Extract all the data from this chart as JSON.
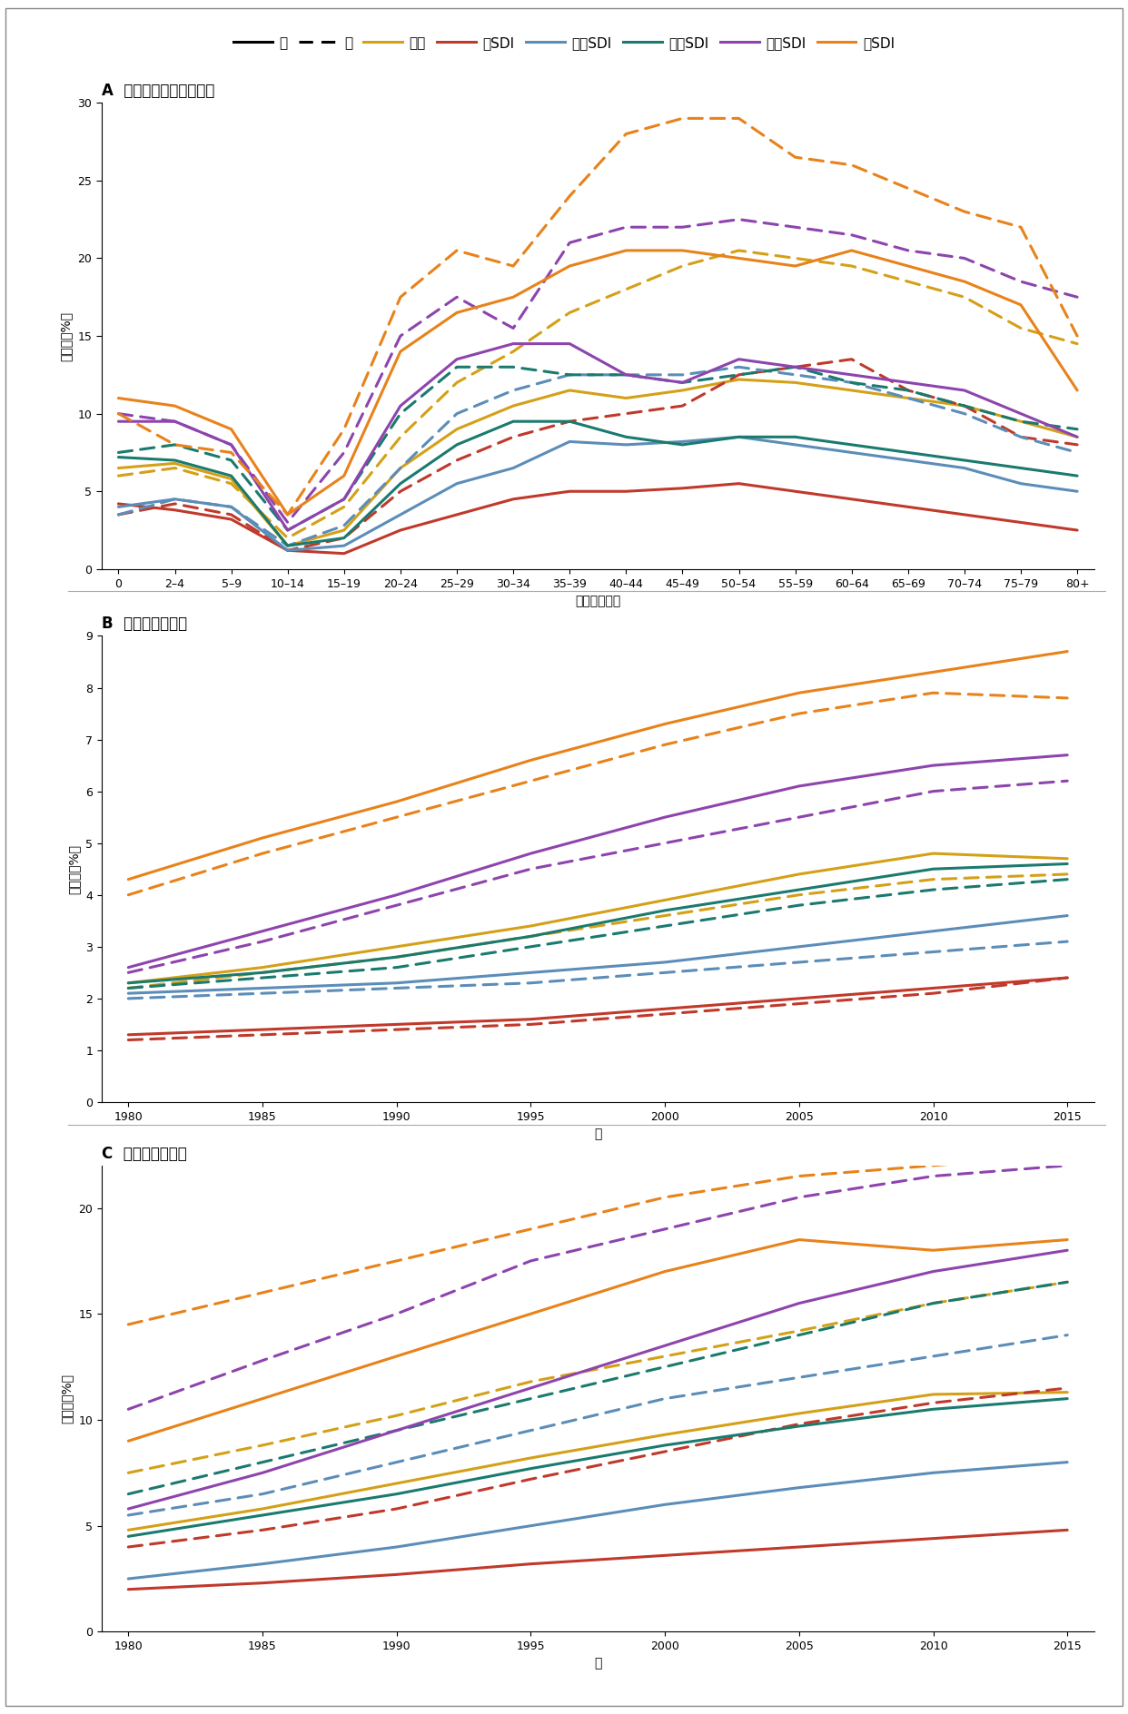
{
  "panel_A_title": "A  不同年龄组的肥胖情况",
  "panel_B_title": "B  儿童的肥胖情况",
  "panel_C_title": "C  成人的肥胖情况",
  "A_xlabel": "年龄组（岁）",
  "B_xlabel": "年",
  "C_xlabel": "年",
  "A_ylabel": "患病率（%）",
  "B_ylabel": "患病率（%）",
  "C_ylabel": "患病率（%）",
  "A_xtick_labels": [
    "0",
    "2–4",
    "5–9",
    "10–14",
    "15–19",
    "20–24",
    "25–29",
    "30–34",
    "35–39",
    "40–44",
    "45–49",
    "50–54",
    "55–59",
    "60–64",
    "65–69",
    "70–74",
    "75–79",
    "80+"
  ],
  "A_ylim": [
    0,
    30
  ],
  "A_yticks": [
    0,
    5,
    10,
    15,
    20,
    25,
    30
  ],
  "B_xticks": [
    1980,
    1985,
    1990,
    1995,
    2000,
    2005,
    2010,
    2015
  ],
  "B_ylim": [
    0,
    9
  ],
  "B_yticks": [
    0,
    1,
    2,
    3,
    4,
    5,
    6,
    7,
    8,
    9
  ],
  "C_xticks": [
    1980,
    1985,
    1990,
    1995,
    2000,
    2005,
    2010,
    2015
  ],
  "C_ylim": [
    0,
    22
  ],
  "C_yticks": [
    0,
    5,
    10,
    15,
    20
  ],
  "colors": {
    "global": "#D4A017",
    "low_sdi": "#C0392B",
    "low_mid_sdi": "#5B8DB8",
    "mid_sdi": "#1A7A6E",
    "mid_high_sdi": "#8E44AD",
    "high_sdi": "#E8821A"
  },
  "A_data": {
    "n": 18,
    "global_male": [
      6.5,
      6.8,
      5.8,
      1.5,
      2.5,
      6.5,
      9.0,
      10.5,
      11.5,
      11.0,
      11.5,
      12.2,
      12.0,
      11.5,
      11.0,
      10.5,
      9.5,
      8.5
    ],
    "global_female": [
      6.0,
      6.5,
      5.5,
      2.0,
      4.0,
      8.5,
      12.0,
      14.0,
      16.5,
      18.0,
      19.5,
      20.5,
      20.0,
      19.5,
      18.5,
      17.5,
      15.5,
      14.5
    ],
    "low_sdi_male": [
      4.2,
      3.8,
      3.2,
      1.2,
      1.0,
      2.5,
      3.5,
      4.5,
      5.0,
      5.0,
      5.2,
      5.5,
      5.0,
      4.5,
      4.0,
      3.5,
      3.0,
      2.5
    ],
    "low_sdi_female": [
      3.5,
      4.2,
      3.5,
      1.2,
      2.0,
      5.0,
      7.0,
      8.5,
      9.5,
      10.0,
      10.5,
      12.5,
      13.0,
      13.5,
      11.5,
      10.5,
      8.5,
      8.0
    ],
    "low_mid_sdi_male": [
      4.0,
      4.5,
      4.0,
      1.2,
      1.5,
      3.5,
      5.5,
      6.5,
      8.2,
      8.0,
      8.2,
      8.5,
      8.0,
      7.5,
      7.0,
      6.5,
      5.5,
      5.0
    ],
    "low_mid_sdi_female": [
      3.5,
      4.5,
      4.0,
      1.5,
      2.8,
      6.5,
      10.0,
      11.5,
      12.5,
      12.5,
      12.5,
      13.0,
      12.5,
      12.0,
      11.0,
      10.0,
      8.5,
      7.5
    ],
    "mid_sdi_male": [
      7.2,
      7.0,
      6.0,
      1.5,
      2.0,
      5.5,
      8.0,
      9.5,
      9.5,
      8.5,
      8.0,
      8.5,
      8.5,
      8.0,
      7.5,
      7.0,
      6.5,
      6.0
    ],
    "mid_sdi_female": [
      7.5,
      8.0,
      7.0,
      2.5,
      4.5,
      10.0,
      13.0,
      13.0,
      12.5,
      12.5,
      12.0,
      12.5,
      13.0,
      12.0,
      11.5,
      10.5,
      9.5,
      9.0
    ],
    "mid_high_sdi_male": [
      9.5,
      9.5,
      8.0,
      2.5,
      4.5,
      10.5,
      13.5,
      14.5,
      14.5,
      12.5,
      12.0,
      13.5,
      13.0,
      12.5,
      12.0,
      11.5,
      10.0,
      8.5
    ],
    "mid_high_sdi_female": [
      10.0,
      9.5,
      8.0,
      3.0,
      7.5,
      15.0,
      17.5,
      15.5,
      21.0,
      22.0,
      22.0,
      22.5,
      22.0,
      21.5,
      20.5,
      20.0,
      18.5,
      17.5
    ],
    "high_sdi_male": [
      11.0,
      10.5,
      9.0,
      3.5,
      6.0,
      14.0,
      16.5,
      17.5,
      19.5,
      20.5,
      20.5,
      20.0,
      19.5,
      20.5,
      19.5,
      18.5,
      17.0,
      11.5
    ],
    "high_sdi_female": [
      10.0,
      8.0,
      7.5,
      3.5,
      9.0,
      17.5,
      20.5,
      19.5,
      24.0,
      28.0,
      29.0,
      29.0,
      26.5,
      26.0,
      24.5,
      23.0,
      22.0,
      15.0
    ]
  },
  "B_data": {
    "years": [
      1980,
      1985,
      1990,
      1995,
      2000,
      2005,
      2010,
      2015
    ],
    "global_male": [
      2.3,
      2.6,
      3.0,
      3.4,
      3.9,
      4.4,
      4.8,
      4.7
    ],
    "global_female": [
      2.2,
      2.5,
      2.8,
      3.2,
      3.6,
      4.0,
      4.3,
      4.4
    ],
    "low_sdi_male": [
      1.3,
      1.4,
      1.5,
      1.6,
      1.8,
      2.0,
      2.2,
      2.4
    ],
    "low_sdi_female": [
      1.2,
      1.3,
      1.4,
      1.5,
      1.7,
      1.9,
      2.1,
      2.4
    ],
    "low_mid_sdi_male": [
      2.1,
      2.2,
      2.3,
      2.5,
      2.7,
      3.0,
      3.3,
      3.6
    ],
    "low_mid_sdi_female": [
      2.0,
      2.1,
      2.2,
      2.3,
      2.5,
      2.7,
      2.9,
      3.1
    ],
    "mid_sdi_male": [
      2.3,
      2.5,
      2.8,
      3.2,
      3.7,
      4.1,
      4.5,
      4.6
    ],
    "mid_sdi_female": [
      2.2,
      2.4,
      2.6,
      3.0,
      3.4,
      3.8,
      4.1,
      4.3
    ],
    "mid_high_sdi_male": [
      2.6,
      3.3,
      4.0,
      4.8,
      5.5,
      6.1,
      6.5,
      6.7
    ],
    "mid_high_sdi_female": [
      2.5,
      3.1,
      3.8,
      4.5,
      5.0,
      5.5,
      6.0,
      6.2
    ],
    "high_sdi_male": [
      4.3,
      5.1,
      5.8,
      6.6,
      7.3,
      7.9,
      8.3,
      8.7
    ],
    "high_sdi_female": [
      4.0,
      4.8,
      5.5,
      6.2,
      6.9,
      7.5,
      7.9,
      7.8
    ]
  },
  "C_data": {
    "years": [
      1980,
      1985,
      1990,
      1995,
      2000,
      2005,
      2010,
      2015
    ],
    "global_male": [
      4.8,
      5.8,
      7.0,
      8.2,
      9.3,
      10.3,
      11.2,
      11.3
    ],
    "global_female": [
      7.5,
      8.8,
      10.2,
      11.8,
      13.0,
      14.2,
      15.5,
      16.5
    ],
    "low_sdi_male": [
      2.0,
      2.3,
      2.7,
      3.2,
      3.6,
      4.0,
      4.4,
      4.8
    ],
    "low_sdi_female": [
      4.0,
      4.8,
      5.8,
      7.2,
      8.5,
      9.8,
      10.8,
      11.5
    ],
    "low_mid_sdi_male": [
      2.5,
      3.2,
      4.0,
      5.0,
      6.0,
      6.8,
      7.5,
      8.0
    ],
    "low_mid_sdi_female": [
      5.5,
      6.5,
      8.0,
      9.5,
      11.0,
      12.0,
      13.0,
      14.0
    ],
    "mid_sdi_male": [
      4.5,
      5.5,
      6.5,
      7.7,
      8.8,
      9.7,
      10.5,
      11.0
    ],
    "mid_sdi_female": [
      6.5,
      8.0,
      9.5,
      11.0,
      12.5,
      14.0,
      15.5,
      16.5
    ],
    "mid_high_sdi_male": [
      5.8,
      7.5,
      9.5,
      11.5,
      13.5,
      15.5,
      17.0,
      18.0
    ],
    "mid_high_sdi_female": [
      10.5,
      12.8,
      15.0,
      17.5,
      19.0,
      20.5,
      21.5,
      22.0
    ],
    "high_sdi_male": [
      9.0,
      11.0,
      13.0,
      15.0,
      17.0,
      18.5,
      18.0,
      18.5
    ],
    "high_sdi_female": [
      14.5,
      16.0,
      17.5,
      19.0,
      20.5,
      21.5,
      22.0,
      22.5
    ]
  }
}
